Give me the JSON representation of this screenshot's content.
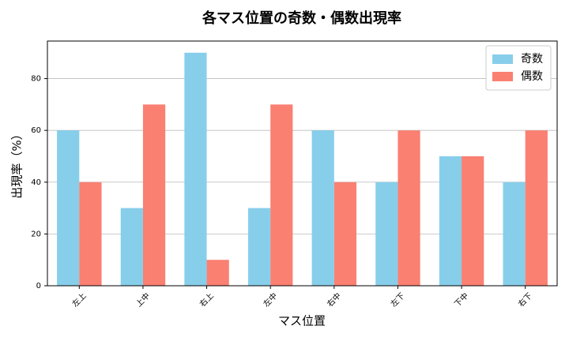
{
  "chart_data": {
    "type": "bar",
    "title": "各マス位置の奇数・偶数出現率",
    "x_label": "マス位置",
    "y_label": "出現率（%）",
    "categories": [
      "左上",
      "上中",
      "右上",
      "左中",
      "右中",
      "左下",
      "下中",
      "右下"
    ],
    "series": [
      {
        "name": "奇数",
        "color": "#87ceeb",
        "values": [
          60,
          30,
          90,
          30,
          60,
          40,
          50,
          40
        ]
      },
      {
        "name": "偶数",
        "color": "#fa8072",
        "values": [
          40,
          70,
          10,
          70,
          40,
          60,
          50,
          60
        ]
      }
    ],
    "ylim": [
      0,
      94.5
    ],
    "yticks": [
      0,
      20,
      40,
      60,
      80
    ],
    "grid": true,
    "legend": "upper-right"
  }
}
